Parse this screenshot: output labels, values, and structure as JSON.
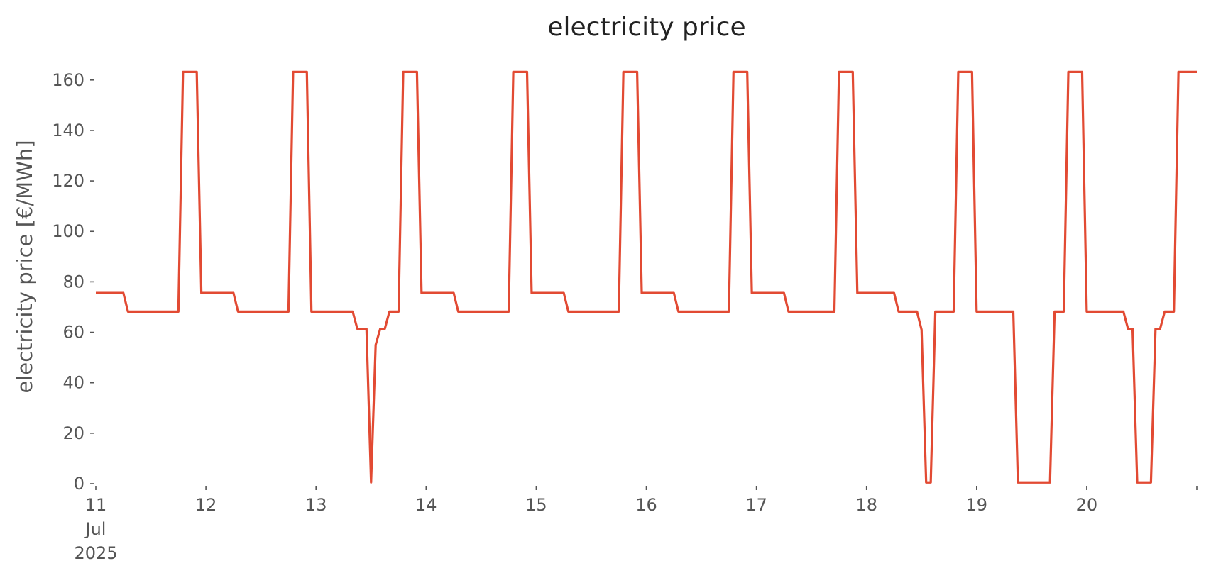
{
  "chart_data": {
    "type": "line",
    "title": "electricity price",
    "xlabel": "",
    "ylabel": "electricity price [€/MWh]",
    "grid": false,
    "legend": "none",
    "colors": {
      "line": "#E24A33",
      "text": "#555555",
      "title": "#222222"
    },
    "xlim": [
      "2025-07-11 00:00",
      "2025-07-21 00:00"
    ],
    "ylim": [
      0,
      165
    ],
    "yticks": [
      0,
      20,
      40,
      60,
      80,
      100,
      120,
      140,
      160
    ],
    "xticks": [
      {
        "value": "2025-07-11 00:00",
        "label": [
          "11",
          "Jul",
          "2025"
        ]
      },
      {
        "value": "2025-07-12 00:00",
        "label": [
          "12"
        ]
      },
      {
        "value": "2025-07-13 00:00",
        "label": [
          "13"
        ]
      },
      {
        "value": "2025-07-14 00:00",
        "label": [
          "14"
        ]
      },
      {
        "value": "2025-07-15 00:00",
        "label": [
          "15"
        ]
      },
      {
        "value": "2025-07-16 00:00",
        "label": [
          "16"
        ]
      },
      {
        "value": "2025-07-17 00:00",
        "label": [
          "17"
        ]
      },
      {
        "value": "2025-07-18 00:00",
        "label": [
          "18"
        ]
      },
      {
        "value": "2025-07-19 00:00",
        "label": [
          "19"
        ]
      },
      {
        "value": "2025-07-20 00:00",
        "label": [
          "20"
        ]
      },
      {
        "value": "2025-07-21 00:00",
        "label": [
          ""
        ]
      }
    ],
    "series": [
      {
        "points": [
          [
            "2025-07-11 00:00",
            75.6
          ],
          [
            "2025-07-11 06:00",
            75.6
          ],
          [
            "2025-07-11 07:00",
            68.2
          ],
          [
            "2025-07-11 18:00",
            68.2
          ],
          [
            "2025-07-11 19:00",
            163.2
          ],
          [
            "2025-07-11 22:00",
            163.2
          ],
          [
            "2025-07-11 23:00",
            75.6
          ],
          [
            "2025-07-12 06:00",
            75.6
          ],
          [
            "2025-07-12 07:00",
            68.2
          ],
          [
            "2025-07-12 18:00",
            68.2
          ],
          [
            "2025-07-12 19:00",
            163.2
          ],
          [
            "2025-07-12 22:00",
            163.2
          ],
          [
            "2025-07-12 23:00",
            68.2
          ],
          [
            "2025-07-13 08:00",
            68.2
          ],
          [
            "2025-07-13 09:00",
            61.4
          ],
          [
            "2025-07-13 11:00",
            61.4
          ],
          [
            "2025-07-13 12:00",
            0.5
          ],
          [
            "2025-07-13 13:00",
            55.0
          ],
          [
            "2025-07-13 14:00",
            61.4
          ],
          [
            "2025-07-13 15:00",
            61.4
          ],
          [
            "2025-07-13 16:00",
            68.2
          ],
          [
            "2025-07-13 18:00",
            68.2
          ],
          [
            "2025-07-13 19:00",
            163.2
          ],
          [
            "2025-07-13 22:00",
            163.2
          ],
          [
            "2025-07-13 23:00",
            75.6
          ],
          [
            "2025-07-14 06:00",
            75.6
          ],
          [
            "2025-07-14 07:00",
            68.2
          ],
          [
            "2025-07-14 18:00",
            68.2
          ],
          [
            "2025-07-14 19:00",
            163.2
          ],
          [
            "2025-07-14 22:00",
            163.2
          ],
          [
            "2025-07-14 23:00",
            75.6
          ],
          [
            "2025-07-15 06:00",
            75.6
          ],
          [
            "2025-07-15 07:00",
            68.2
          ],
          [
            "2025-07-15 18:00",
            68.2
          ],
          [
            "2025-07-15 19:00",
            163.2
          ],
          [
            "2025-07-15 22:00",
            163.2
          ],
          [
            "2025-07-15 23:00",
            75.6
          ],
          [
            "2025-07-16 06:00",
            75.6
          ],
          [
            "2025-07-16 07:00",
            68.2
          ],
          [
            "2025-07-16 18:00",
            68.2
          ],
          [
            "2025-07-16 19:00",
            163.2
          ],
          [
            "2025-07-16 22:00",
            163.2
          ],
          [
            "2025-07-16 23:00",
            75.6
          ],
          [
            "2025-07-17 06:00",
            75.6
          ],
          [
            "2025-07-17 07:00",
            68.2
          ],
          [
            "2025-07-17 17:00",
            68.2
          ],
          [
            "2025-07-17 18:00",
            163.2
          ],
          [
            "2025-07-17 21:00",
            163.2
          ],
          [
            "2025-07-17 22:00",
            75.6
          ],
          [
            "2025-07-18 06:00",
            75.6
          ],
          [
            "2025-07-18 07:00",
            68.2
          ],
          [
            "2025-07-18 11:00",
            68.2
          ],
          [
            "2025-07-18 12:00",
            61.0
          ],
          [
            "2025-07-18 13:00",
            0.5
          ],
          [
            "2025-07-18 14:00",
            0.5
          ],
          [
            "2025-07-18 15:00",
            68.2
          ],
          [
            "2025-07-18 19:00",
            68.2
          ],
          [
            "2025-07-18 20:00",
            163.2
          ],
          [
            "2025-07-18 23:00",
            163.2
          ],
          [
            "2025-07-19 00:00",
            68.2
          ],
          [
            "2025-07-19 08:00",
            68.2
          ],
          [
            "2025-07-19 09:00",
            0.5
          ],
          [
            "2025-07-19 16:00",
            0.5
          ],
          [
            "2025-07-19 17:00",
            68.2
          ],
          [
            "2025-07-19 19:00",
            68.2
          ],
          [
            "2025-07-19 20:00",
            163.2
          ],
          [
            "2025-07-19 23:00",
            163.2
          ],
          [
            "2025-07-20 00:00",
            68.2
          ],
          [
            "2025-07-20 08:00",
            68.2
          ],
          [
            "2025-07-20 09:00",
            61.4
          ],
          [
            "2025-07-20 10:00",
            61.4
          ],
          [
            "2025-07-20 11:00",
            0.5
          ],
          [
            "2025-07-20 14:00",
            0.5
          ],
          [
            "2025-07-20 15:00",
            61.4
          ],
          [
            "2025-07-20 16:00",
            61.4
          ],
          [
            "2025-07-20 17:00",
            68.2
          ],
          [
            "2025-07-20 19:00",
            68.2
          ],
          [
            "2025-07-20 20:00",
            163.2
          ],
          [
            "2025-07-21 00:00",
            163.2
          ]
        ]
      }
    ]
  }
}
